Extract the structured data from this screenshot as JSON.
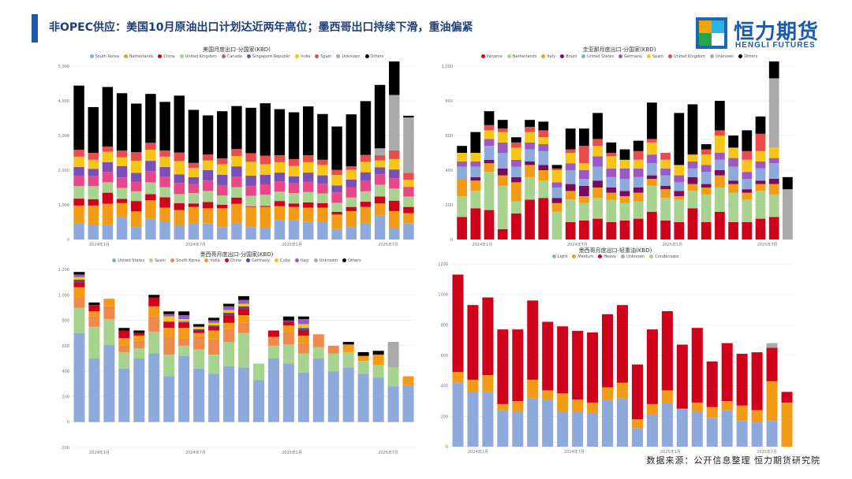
{
  "page": {
    "title": "非OPEC供应：美国10月原油出口计划达近两年高位；墨西哥出口持续下滑，重油偏紧",
    "logo_cn": "恒力期货",
    "logo_en": "HENGLI FUTURES",
    "source": "数据来源：公开信息整理  恒力期货研究院"
  },
  "chart_data": [
    {
      "id": "us",
      "type": "bar",
      "stacked": true,
      "title": "美国月度出口-分国家(KBD)",
      "ylim": [
        0,
        5000
      ],
      "yticks": [
        "0",
        "1,000",
        "2,000",
        "3,000",
        "4,000",
        "5,000"
      ],
      "x_labels": [
        "2024年1月",
        "2024年7月",
        "2025年1月",
        "2025年7月"
      ],
      "series": [
        {
          "name": "South Korea",
          "color": "#8eaadc",
          "values": [
            480,
            420,
            430,
            650,
            360,
            600,
            500,
            400,
            480,
            460,
            360,
            480,
            360,
            340,
            560,
            560,
            520,
            500,
            300,
            360,
            480,
            700,
            340,
            460
          ]
        },
        {
          "name": "Netherlands",
          "color": "#f39b14",
          "values": [
            500,
            560,
            600,
            400,
            450,
            530,
            420,
            450,
            460,
            440,
            540,
            550,
            580,
            600,
            400,
            380,
            400,
            420,
            420,
            460,
            460,
            340,
            480,
            300
          ]
        },
        {
          "name": "China",
          "color": "#d0021b",
          "values": [
            200,
            180,
            320,
            120,
            300,
            180,
            300,
            200,
            100,
            180,
            100,
            180,
            20,
            30,
            150,
            100,
            150,
            130,
            80,
            120,
            150,
            200,
            300,
            180
          ]
        },
        {
          "name": "United Kingdom",
          "color": "#a8d38f",
          "values": [
            360,
            380,
            300,
            320,
            280,
            340,
            290,
            260,
            300,
            320,
            270,
            300,
            300,
            320,
            270,
            300,
            300,
            280,
            260,
            270,
            300,
            340,
            350,
            300
          ]
        },
        {
          "name": "Canada",
          "color": "#e8488a",
          "values": [
            300,
            300,
            300,
            300,
            280,
            320,
            300,
            320,
            260,
            300,
            300,
            300,
            280,
            300,
            300,
            280,
            300,
            280,
            300,
            300,
            300,
            300,
            300,
            280
          ]
        },
        {
          "name": "Singapore Republic",
          "color": "#7a4fb8",
          "values": [
            250,
            200,
            280,
            330,
            250,
            300,
            280,
            250,
            200,
            300,
            300,
            300,
            300,
            280,
            250,
            200,
            260,
            240,
            200,
            220,
            250,
            200,
            250,
            0
          ]
        },
        {
          "name": "India",
          "color": "#f5c518",
          "values": [
            300,
            260,
            300,
            250,
            350,
            320,
            300,
            380,
            260,
            280,
            300,
            300,
            400,
            300,
            300,
            300,
            300,
            300,
            300,
            280,
            300,
            200,
            300,
            200
          ]
        },
        {
          "name": "Spain",
          "color": "#e84c4c",
          "values": [
            200,
            200,
            150,
            200,
            250,
            200,
            180,
            250,
            150,
            170,
            170,
            200,
            250,
            250,
            200,
            200,
            200,
            150,
            150,
            100,
            200,
            150,
            250,
            200
          ]
        },
        {
          "name": "Unknown",
          "color": "#aaaaaa",
          "values": [
            0,
            0,
            0,
            0,
            0,
            0,
            0,
            0,
            0,
            0,
            0,
            0,
            0,
            0,
            0,
            0,
            0,
            0,
            0,
            0,
            0,
            200,
            1600,
            1600
          ]
        },
        {
          "name": "Others",
          "color": "#000000",
          "values": [
            1850,
            1320,
            1720,
            1650,
            1400,
            1410,
            1400,
            1640,
            1530,
            1130,
            1360,
            1240,
            1310,
            1510,
            1330,
            1350,
            1410,
            1320,
            1250,
            1500,
            1550,
            1830,
            1120,
            50
          ]
        }
      ]
    },
    {
      "id": "brazil",
      "type": "bar",
      "stacked": true,
      "title": "圭亚那月度出口-分国家(KBD)",
      "ylim": [
        0,
        1000
      ],
      "yticks": [
        "0",
        "200",
        "400",
        "600",
        "800",
        "1,000"
      ],
      "x_labels": [
        "2024年1月",
        "2024年7月",
        "2025年1月",
        "2025年7月"
      ],
      "series": [
        {
          "name": "Panama",
          "color": "#d0021b",
          "values": [
            130,
            180,
            170,
            60,
            150,
            230,
            240,
            0,
            100,
            110,
            120,
            100,
            110,
            120,
            160,
            110,
            100,
            180,
            100,
            160,
            100,
            100,
            120,
            130,
            0
          ]
        },
        {
          "name": "Netherlands",
          "color": "#a8d38f",
          "values": [
            120,
            100,
            220,
            250,
            70,
            130,
            100,
            160,
            130,
            100,
            120,
            130,
            100,
            100,
            150,
            130,
            130,
            100,
            160,
            140,
            170,
            130,
            160,
            130,
            0
          ]
        },
        {
          "name": "Italy",
          "color": "#f39b14",
          "values": [
            100,
            60,
            50,
            60,
            110,
            70,
            60,
            50,
            50,
            40,
            60,
            40,
            40,
            50,
            40,
            50,
            20,
            40,
            40,
            70,
            50,
            40,
            40,
            60,
            0
          ]
        },
        {
          "name": "Brazil",
          "color": "#7a0a5e",
          "values": [
            0,
            20,
            20,
            40,
            30,
            20,
            30,
            30,
            40,
            60,
            40,
            30,
            30,
            30,
            20,
            20,
            30,
            40,
            20,
            30,
            20,
            20,
            20,
            30,
            0
          ]
        },
        {
          "name": "United States",
          "color": "#8eaadc",
          "values": [
            70,
            60,
            80,
            90,
            60,
            70,
            80,
            60,
            80,
            40,
            80,
            60,
            70,
            60,
            70,
            60,
            50,
            50,
            70,
            60,
            80,
            60,
            70,
            90,
            0
          ]
        },
        {
          "name": "Germany",
          "color": "#9b59c6",
          "values": [
            30,
            30,
            40,
            60,
            40,
            40,
            40,
            30,
            40,
            50,
            60,
            50,
            60,
            50,
            50,
            40,
            40,
            40,
            40,
            40,
            50,
            40,
            40,
            30,
            0
          ]
        },
        {
          "name": "Spain",
          "color": "#f5c518",
          "values": [
            50,
            50,
            50,
            60,
            70,
            60,
            40,
            70,
            60,
            40,
            60,
            70,
            50,
            50,
            70,
            50,
            60,
            40,
            60,
            100,
            60,
            70,
            60,
            60,
            0
          ]
        },
        {
          "name": "United Kingdom",
          "color": "#e84c4c",
          "values": [
            0,
            0,
            30,
            20,
            30,
            30,
            40,
            10,
            20,
            100,
            40,
            20,
            0,
            50,
            20,
            40,
            0,
            0,
            30,
            30,
            0,
            50,
            100,
            0,
            0
          ]
        },
        {
          "name": "Unknown",
          "color": "#aaaaaa",
          "values": [
            0,
            0,
            0,
            0,
            0,
            0,
            0,
            0,
            0,
            0,
            0,
            0,
            0,
            0,
            0,
            0,
            0,
            0,
            0,
            0,
            0,
            0,
            0,
            400,
            290
          ]
        },
        {
          "name": "Others",
          "color": "#000000",
          "values": [
            40,
            120,
            80,
            50,
            30,
            40,
            50,
            20,
            120,
            100,
            150,
            60,
            60,
            60,
            210,
            0,
            300,
            290,
            30,
            170,
            70,
            120,
            100,
            140,
            70
          ]
        }
      ]
    },
    {
      "id": "mexico_country",
      "type": "bar",
      "stacked": true,
      "title": "墨西哥月度出口-分国家(KBD)",
      "ylim": [
        -200,
        1200
      ],
      "yticks": [
        "-200",
        "0",
        "200",
        "400",
        "600",
        "800",
        "1,000",
        "1,200"
      ],
      "x_labels": [
        "2024年1月",
        "2024年7月",
        "2025年1月",
        "2025年7月"
      ],
      "series": [
        {
          "name": "United States",
          "color": "#8eaadc",
          "values": [
            700,
            500,
            610,
            420,
            500,
            540,
            360,
            520,
            420,
            380,
            440,
            430,
            330,
            500,
            460,
            390,
            500,
            400,
            430,
            380,
            350,
            280,
            290
          ]
        },
        {
          "name": "Spain",
          "color": "#a8d38f",
          "values": [
            200,
            250,
            200,
            130,
            80,
            170,
            170,
            80,
            150,
            150,
            190,
            270,
            130,
            100,
            150,
            150,
            90,
            140,
            120,
            100,
            100,
            150,
            0
          ]
        },
        {
          "name": "South Korea",
          "color": "#f08a4b",
          "values": [
            80,
            80,
            100,
            50,
            60,
            120,
            140,
            60,
            100,
            120,
            100,
            80,
            0,
            70,
            100,
            80,
            100,
            60,
            0,
            0,
            0,
            0,
            0
          ]
        },
        {
          "name": "India",
          "color": "#f39b14",
          "values": [
            80,
            40,
            60,
            60,
            40,
            80,
            70,
            80,
            30,
            70,
            50,
            60,
            0,
            0,
            50,
            60,
            0,
            0,
            60,
            40,
            80,
            0,
            70
          ]
        },
        {
          "name": "China",
          "color": "#d0021b",
          "values": [
            40,
            50,
            0,
            60,
            20,
            70,
            50,
            40,
            20,
            30,
            60,
            50,
            0,
            50,
            30,
            40,
            0,
            0,
            0,
            0,
            0,
            0,
            0
          ]
        },
        {
          "name": "Germany",
          "color": "#4a4aa0",
          "values": [
            20,
            0,
            0,
            0,
            0,
            0,
            0,
            10,
            10,
            10,
            20,
            20,
            0,
            0,
            10,
            20,
            0,
            0,
            0,
            0,
            0,
            0,
            0
          ]
        },
        {
          "name": "Cuba",
          "color": "#f5c518",
          "values": [
            20,
            0,
            0,
            0,
            0,
            0,
            40,
            20,
            20,
            20,
            20,
            20,
            0,
            0,
            0,
            30,
            0,
            0,
            0,
            0,
            0,
            0,
            0
          ]
        },
        {
          "name": "Italy",
          "color": "#9b59c6",
          "values": [
            20,
            0,
            0,
            0,
            0,
            0,
            20,
            30,
            0,
            20,
            30,
            30,
            0,
            0,
            0,
            40,
            0,
            0,
            0,
            0,
            0,
            0,
            0
          ]
        },
        {
          "name": "Unknown",
          "color": "#aaaaaa",
          "values": [
            0,
            0,
            0,
            0,
            0,
            0,
            0,
            0,
            0,
            0,
            0,
            0,
            0,
            0,
            0,
            0,
            0,
            0,
            0,
            0,
            0,
            200,
            0
          ]
        },
        {
          "name": "Others",
          "color": "#000000",
          "values": [
            20,
            20,
            0,
            20,
            20,
            20,
            20,
            30,
            20,
            20,
            20,
            30,
            0,
            0,
            30,
            20,
            0,
            0,
            20,
            30,
            30,
            0,
            0
          ]
        }
      ]
    },
    {
      "id": "mexico_grade",
      "type": "bar",
      "stacked": true,
      "title": "墨西哥月度出口-轻重油(KBD)",
      "ylim": [
        0,
        1200
      ],
      "yticks": [
        "0",
        "200",
        "400",
        "600",
        "800",
        "1000",
        "1200"
      ],
      "x_labels": [
        "2024年1月",
        "2024年7月",
        "2025年1月",
        "2025年7月"
      ],
      "series": [
        {
          "name": "Light",
          "color": "#8eaadc",
          "values": [
            420,
            360,
            360,
            240,
            230,
            320,
            310,
            230,
            230,
            220,
            310,
            320,
            120,
            210,
            290,
            250,
            230,
            190,
            240,
            170,
            160,
            170,
            0
          ]
        },
        {
          "name": "Medium",
          "color": "#f39b14",
          "values": [
            70,
            80,
            110,
            40,
            70,
            120,
            60,
            120,
            80,
            70,
            80,
            100,
            60,
            70,
            80,
            0,
            60,
            70,
            60,
            100,
            80,
            260,
            290
          ]
        },
        {
          "name": "Heavy",
          "color": "#d0021b",
          "values": [
            640,
            490,
            510,
            490,
            470,
            520,
            450,
            440,
            450,
            460,
            480,
            510,
            360,
            490,
            520,
            420,
            490,
            300,
            380,
            340,
            380,
            220,
            70
          ]
        },
        {
          "name": "Unknown",
          "color": "#aaaaaa",
          "values": [
            0,
            0,
            0,
            0,
            0,
            0,
            0,
            0,
            0,
            0,
            0,
            0,
            0,
            0,
            0,
            0,
            0,
            0,
            0,
            0,
            0,
            30,
            0
          ]
        },
        {
          "name": "Condensate",
          "color": "#a8d38f",
          "values": [
            0,
            0,
            0,
            0,
            0,
            0,
            0,
            0,
            0,
            0,
            0,
            0,
            0,
            0,
            0,
            0,
            0,
            0,
            0,
            0,
            0,
            0,
            0
          ]
        }
      ]
    }
  ]
}
